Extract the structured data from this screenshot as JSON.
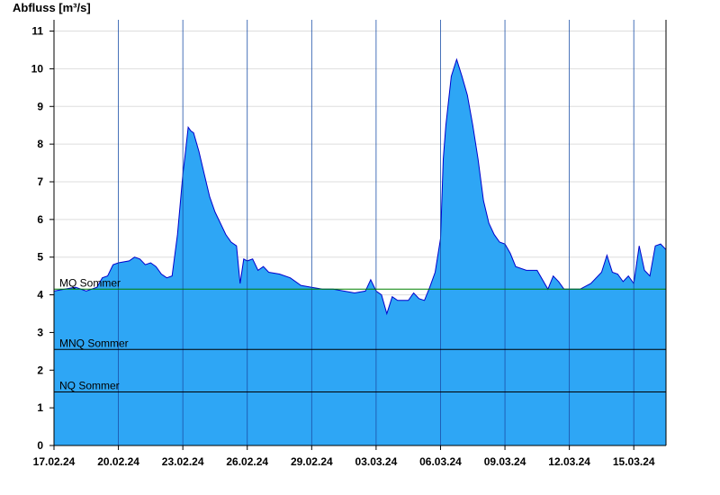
{
  "chart_data": {
    "type": "area",
    "ylabel": "Abfluss [m³/s]",
    "ylim": [
      0,
      11.3
    ],
    "yticks": [
      0,
      1,
      2,
      3,
      4,
      5,
      6,
      7,
      8,
      9,
      10,
      11
    ],
    "xlim": [
      "2024-02-17T00:00",
      "2024-03-16T12:00"
    ],
    "xticks": [
      {
        "date": "2024-02-17",
        "label": "17.02.24"
      },
      {
        "date": "2024-02-20",
        "label": "20.02.24"
      },
      {
        "date": "2024-02-23",
        "label": "23.02.24"
      },
      {
        "date": "2024-02-26",
        "label": "26.02.24"
      },
      {
        "date": "2024-02-29",
        "label": "29.02.24"
      },
      {
        "date": "2024-03-03",
        "label": "03.03.24"
      },
      {
        "date": "2024-03-06",
        "label": "06.03.24"
      },
      {
        "date": "2024-03-09",
        "label": "09.03.24"
      },
      {
        "date": "2024-03-12",
        "label": "12.03.24"
      },
      {
        "date": "2024-03-15",
        "label": "15.03.24"
      }
    ],
    "grid": true,
    "colors": {
      "fill": "#2ea6f5",
      "line": "#0000cc",
      "mq": "#008000",
      "ref": "#000000",
      "grid": "#dddddd"
    },
    "reference_lines": [
      {
        "label": "MQ Sommer",
        "value": 4.15,
        "color": "#008000"
      },
      {
        "label": "MNQ Sommer",
        "value": 2.55,
        "color": "#000000"
      },
      {
        "label": "NQ Sommer",
        "value": 1.42,
        "color": "#000000"
      }
    ],
    "series": [
      {
        "points": [
          [
            "2024-02-17T00:00",
            4.1
          ],
          [
            "2024-02-17T12:00",
            4.15
          ],
          [
            "2024-02-18T00:00",
            4.2
          ],
          [
            "2024-02-18T12:00",
            4.1
          ],
          [
            "2024-02-19T00:00",
            4.2
          ],
          [
            "2024-02-19T06:00",
            4.45
          ],
          [
            "2024-02-19T12:00",
            4.5
          ],
          [
            "2024-02-19T18:00",
            4.8
          ],
          [
            "2024-02-20T00:00",
            4.85
          ],
          [
            "2024-02-20T12:00",
            4.9
          ],
          [
            "2024-02-20T18:00",
            5.0
          ],
          [
            "2024-02-21T00:00",
            4.95
          ],
          [
            "2024-02-21T06:00",
            4.8
          ],
          [
            "2024-02-21T12:00",
            4.85
          ],
          [
            "2024-02-21T18:00",
            4.75
          ],
          [
            "2024-02-22T00:00",
            4.55
          ],
          [
            "2024-02-22T06:00",
            4.45
          ],
          [
            "2024-02-22T12:00",
            4.5
          ],
          [
            "2024-02-22T18:00",
            5.6
          ],
          [
            "2024-02-23T00:00",
            7.2
          ],
          [
            "2024-02-23T03:00",
            7.8
          ],
          [
            "2024-02-23T06:00",
            8.45
          ],
          [
            "2024-02-23T09:00",
            8.35
          ],
          [
            "2024-02-23T12:00",
            8.3
          ],
          [
            "2024-02-23T18:00",
            7.8
          ],
          [
            "2024-02-24T00:00",
            7.2
          ],
          [
            "2024-02-24T06:00",
            6.6
          ],
          [
            "2024-02-24T12:00",
            6.2
          ],
          [
            "2024-02-24T18:00",
            5.9
          ],
          [
            "2024-02-25T00:00",
            5.6
          ],
          [
            "2024-02-25T06:00",
            5.4
          ],
          [
            "2024-02-25T12:00",
            5.3
          ],
          [
            "2024-02-25T16:00",
            4.3
          ],
          [
            "2024-02-25T20:00",
            4.95
          ],
          [
            "2024-02-26T00:00",
            4.9
          ],
          [
            "2024-02-26T06:00",
            4.95
          ],
          [
            "2024-02-26T12:00",
            4.65
          ],
          [
            "2024-02-26T18:00",
            4.75
          ],
          [
            "2024-02-27T00:00",
            4.6
          ],
          [
            "2024-02-27T12:00",
            4.55
          ],
          [
            "2024-02-28T00:00",
            4.45
          ],
          [
            "2024-02-28T12:00",
            4.25
          ],
          [
            "2024-02-29T00:00",
            4.2
          ],
          [
            "2024-02-29T12:00",
            4.15
          ],
          [
            "2024-03-01T00:00",
            4.15
          ],
          [
            "2024-03-01T12:00",
            4.1
          ],
          [
            "2024-03-02T00:00",
            4.05
          ],
          [
            "2024-03-02T12:00",
            4.1
          ],
          [
            "2024-03-02T18:00",
            4.4
          ],
          [
            "2024-03-03T00:00",
            4.1
          ],
          [
            "2024-03-03T06:00",
            4.0
          ],
          [
            "2024-03-03T12:00",
            3.5
          ],
          [
            "2024-03-03T18:00",
            3.95
          ],
          [
            "2024-03-04T00:00",
            3.85
          ],
          [
            "2024-03-04T12:00",
            3.85
          ],
          [
            "2024-03-04T18:00",
            4.05
          ],
          [
            "2024-03-05T00:00",
            3.9
          ],
          [
            "2024-03-05T06:00",
            3.85
          ],
          [
            "2024-03-05T12:00",
            4.2
          ],
          [
            "2024-03-05T18:00",
            4.6
          ],
          [
            "2024-03-06T00:00",
            5.5
          ],
          [
            "2024-03-06T03:00",
            7.6
          ],
          [
            "2024-03-06T06:00",
            8.5
          ],
          [
            "2024-03-06T12:00",
            9.8
          ],
          [
            "2024-03-06T18:00",
            10.25
          ],
          [
            "2024-03-07T00:00",
            9.8
          ],
          [
            "2024-03-07T06:00",
            9.3
          ],
          [
            "2024-03-07T12:00",
            8.5
          ],
          [
            "2024-03-07T18:00",
            7.6
          ],
          [
            "2024-03-08T00:00",
            6.5
          ],
          [
            "2024-03-08T06:00",
            5.9
          ],
          [
            "2024-03-08T12:00",
            5.6
          ],
          [
            "2024-03-08T18:00",
            5.4
          ],
          [
            "2024-03-09T00:00",
            5.35
          ],
          [
            "2024-03-09T06:00",
            5.1
          ],
          [
            "2024-03-09T12:00",
            4.75
          ],
          [
            "2024-03-10T00:00",
            4.65
          ],
          [
            "2024-03-10T12:00",
            4.65
          ],
          [
            "2024-03-11T00:00",
            4.15
          ],
          [
            "2024-03-11T06:00",
            4.5
          ],
          [
            "2024-03-11T12:00",
            4.35
          ],
          [
            "2024-03-11T18:00",
            4.15
          ],
          [
            "2024-03-12T00:00",
            4.15
          ],
          [
            "2024-03-12T12:00",
            4.15
          ],
          [
            "2024-03-13T00:00",
            4.3
          ],
          [
            "2024-03-13T12:00",
            4.6
          ],
          [
            "2024-03-13T18:00",
            5.05
          ],
          [
            "2024-03-14T00:00",
            4.6
          ],
          [
            "2024-03-14T06:00",
            4.55
          ],
          [
            "2024-03-14T12:00",
            4.35
          ],
          [
            "2024-03-14T18:00",
            4.5
          ],
          [
            "2024-03-15T00:00",
            4.3
          ],
          [
            "2024-03-15T06:00",
            5.3
          ],
          [
            "2024-03-15T12:00",
            4.65
          ],
          [
            "2024-03-15T18:00",
            4.5
          ],
          [
            "2024-03-16T00:00",
            5.3
          ],
          [
            "2024-03-16T06:00",
            5.35
          ],
          [
            "2024-03-16T12:00",
            5.2
          ]
        ]
      }
    ]
  }
}
